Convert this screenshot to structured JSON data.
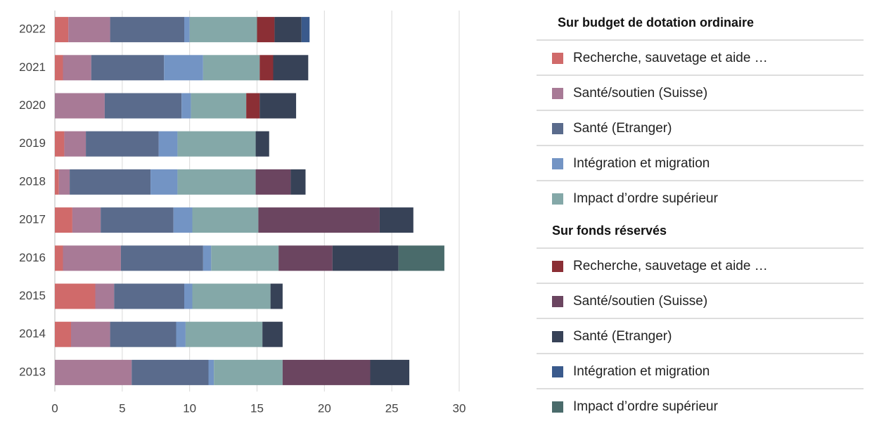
{
  "chart_data": {
    "type": "stacked-barh",
    "categories": [
      "2022",
      "2021",
      "2020",
      "2019",
      "2018",
      "2017",
      "2016",
      "2015",
      "2014",
      "2013"
    ],
    "xlim": [
      0,
      30
    ],
    "xticks": [
      0,
      5,
      10,
      15,
      20,
      25,
      30
    ],
    "grid": true,
    "series_groups": [
      {
        "title": "Sur budget de dotation ordinaire",
        "series": [
          {
            "name": "Recherche, sauvetage et aide …",
            "color": "#d06a6a",
            "values": [
              1.0,
              0.6,
              0,
              0.7,
              0.3,
              1.3,
              0.6,
              3.0,
              1.2,
              0
            ]
          },
          {
            "name": "Santé/soutien (Suisse)",
            "color": "#a87a96",
            "values": [
              3.1,
              2.1,
              3.7,
              1.6,
              0.8,
              2.1,
              4.3,
              1.4,
              2.9,
              5.7
            ]
          },
          {
            "name": "Santé (Etranger)",
            "color": "#5a6b8c",
            "values": [
              5.5,
              5.4,
              5.7,
              5.4,
              6.0,
              5.4,
              6.1,
              5.2,
              4.9,
              5.7
            ]
          },
          {
            "name": "Intégration et migration",
            "color": "#7394c4",
            "values": [
              0.4,
              2.9,
              0.7,
              1.4,
              2.0,
              1.4,
              0.6,
              0.6,
              0.7,
              0.4
            ]
          },
          {
            "name": "Impact d’ordre supérieur",
            "color": "#84a8a8",
            "values": [
              5.0,
              4.2,
              4.1,
              5.8,
              5.8,
              4.9,
              5.0,
              5.8,
              5.7,
              5.1
            ]
          }
        ]
      },
      {
        "title": "Sur fonds réservés",
        "series": [
          {
            "name": "Recherche, sauvetage et aide …",
            "color": "#8b2f35",
            "values": [
              1.3,
              1.0,
              1.0,
              0,
              0,
              0,
              0,
              0,
              0,
              0
            ]
          },
          {
            "name": "Santé/soutien (Suisse)",
            "color": "#6b4560",
            "values": [
              0,
              0,
              0,
              0,
              2.6,
              9.0,
              4.0,
              0,
              0,
              6.5
            ]
          },
          {
            "name": "Santé (Etranger)",
            "color": "#374257",
            "values": [
              2.0,
              2.6,
              2.7,
              1.0,
              1.1,
              2.5,
              4.9,
              0.9,
              1.5,
              2.9
            ]
          },
          {
            "name": "Intégration et migration",
            "color": "#3a5a8c",
            "values": [
              0.6,
              0,
              0,
              0,
              0,
              0,
              0,
              0,
              0,
              0
            ]
          },
          {
            "name": "Impact d’ordre supérieur",
            "color": "#4a6b6b",
            "values": [
              0,
              0,
              0,
              0,
              0,
              0,
              3.4,
              0,
              0,
              0
            ]
          }
        ]
      }
    ]
  }
}
